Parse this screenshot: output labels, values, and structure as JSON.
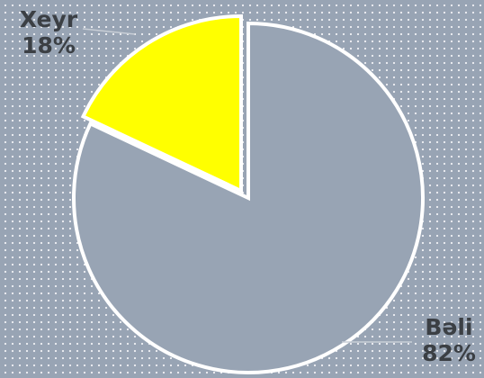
{
  "chart_data": {
    "type": "pie",
    "categories": [
      "Bəli",
      "Xeyr"
    ],
    "values": [
      82,
      18
    ],
    "value_labels": [
      "82%",
      "18%"
    ],
    "colors": [
      "#98a4b4",
      "#ffff00"
    ],
    "exploded": "Xeyr",
    "start": "top, clockwise"
  }
}
